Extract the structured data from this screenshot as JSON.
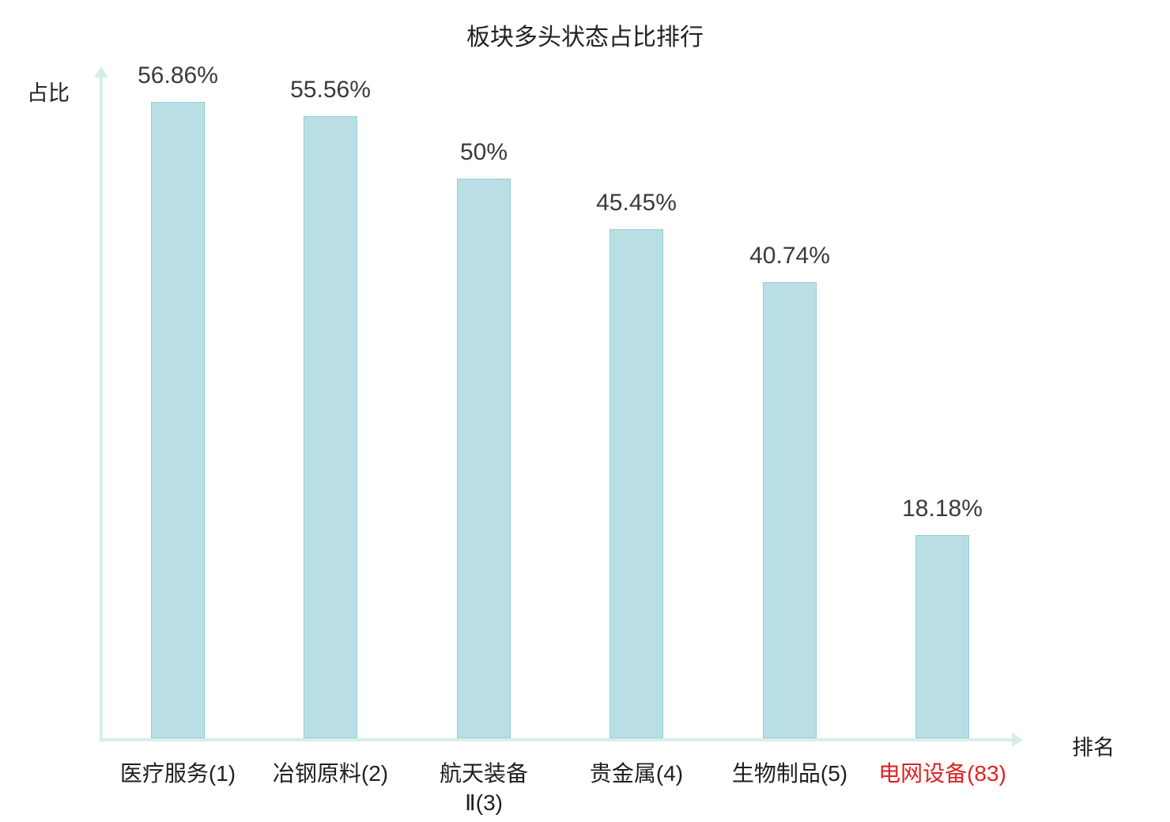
{
  "chart": {
    "title": "板块多头状态占比排行",
    "ylabel": "占比",
    "xlabel": "排名"
  },
  "chart_data": {
    "type": "bar",
    "title": "板块多头状态占比排行",
    "xlabel": "排名",
    "ylabel": "占比",
    "categories": [
      "医疗服务(1)",
      "冶钢原料(2)",
      "航天装备Ⅱ(3)",
      "贵金属(4)",
      "生物制品(5)",
      "电网设备(83)"
    ],
    "category_lines": [
      [
        "医疗服务(1)"
      ],
      [
        "冶钢原料(2)"
      ],
      [
        "航天装备",
        "Ⅱ(3)"
      ],
      [
        "贵金属(4)"
      ],
      [
        "生物制品(5)"
      ],
      [
        "电网设备(83)"
      ]
    ],
    "values": [
      56.86,
      55.56,
      50,
      45.45,
      40.74,
      18.18
    ],
    "value_labels": [
      "56.86%",
      "55.56%",
      "50%",
      "45.45%",
      "40.74%",
      "18.18%"
    ],
    "category_colors": [
      "#1f1f1f",
      "#1f1f1f",
      "#1f1f1f",
      "#1f1f1f",
      "#1f1f1f",
      "#e02222"
    ],
    "highlight_index": 5,
    "highlight_color": "#e02222",
    "bar_color": "#b9dfe4",
    "bar_border_color": "#96ccd4",
    "axis_color": "#d7eee8",
    "ylim": [
      0,
      60
    ],
    "grid": false,
    "legend": null
  }
}
